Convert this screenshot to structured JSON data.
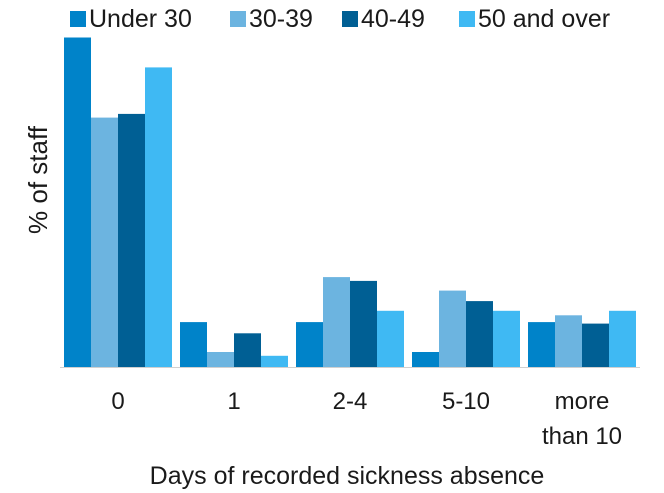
{
  "chart_data": {
    "type": "bar",
    "title": "",
    "xlabel": "Days of recorded sickness absence",
    "ylabel": "% of staff",
    "categories": [
      [
        "0"
      ],
      [
        "1"
      ],
      [
        "2-4"
      ],
      [
        "5-10"
      ],
      [
        "more",
        "than 10"
      ]
    ],
    "ylim": [
      0,
      45
    ],
    "y_axis_visible": false,
    "grid": false,
    "legend_position": "top",
    "series": [
      {
        "name": "Under 30",
        "color": "#0083c9",
        "values": [
          44.0,
          6.0,
          6.0,
          2.0,
          6.0
        ]
      },
      {
        "name": "30-39",
        "color": "#6cb4e0",
        "values": [
          33.3,
          2.0,
          12.0,
          10.2,
          6.9
        ]
      },
      {
        "name": "40-49",
        "color": "#005f94",
        "values": [
          33.8,
          4.5,
          11.5,
          8.8,
          5.8
        ]
      },
      {
        "name": "50 and over",
        "color": "#3fb9f3",
        "values": [
          40.0,
          1.5,
          7.5,
          7.5,
          7.5
        ]
      }
    ]
  }
}
